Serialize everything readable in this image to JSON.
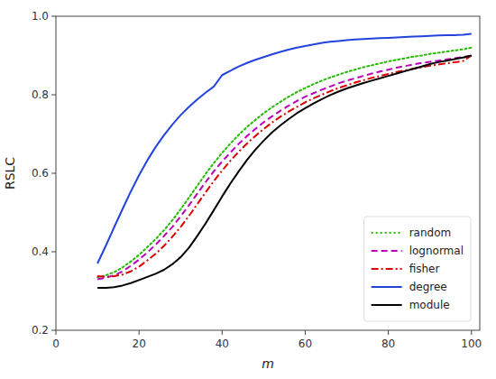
{
  "chart_data": {
    "type": "line",
    "xlabel": "m",
    "ylabel": "RSLC",
    "xlim": [
      0,
      102
    ],
    "ylim": [
      0.2,
      1.0
    ],
    "xticks": [
      0,
      20,
      40,
      60,
      80,
      100
    ],
    "yticks": [
      0.2,
      0.4,
      0.6,
      0.8,
      {
        "value": 1.0,
        "label": "1.0"
      }
    ],
    "grid": false,
    "legend": "lower right",
    "x": [
      10,
      12,
      14,
      16,
      18,
      20,
      22,
      24,
      26,
      28,
      30,
      32,
      34,
      36,
      38,
      40,
      42,
      44,
      46,
      48,
      50,
      52,
      54,
      56,
      58,
      60,
      62,
      64,
      66,
      68,
      70,
      72,
      74,
      76,
      78,
      80,
      82,
      84,
      86,
      88,
      90,
      92,
      94,
      96,
      98,
      100
    ],
    "series": [
      {
        "name": "random",
        "color": "#22bb00",
        "line_style": "dotted",
        "values": [
          0.335,
          0.34,
          0.348,
          0.36,
          0.375,
          0.392,
          0.412,
          0.432,
          0.455,
          0.48,
          0.508,
          0.538,
          0.568,
          0.598,
          0.626,
          0.652,
          0.676,
          0.698,
          0.718,
          0.736,
          0.753,
          0.768,
          0.782,
          0.795,
          0.807,
          0.817,
          0.827,
          0.836,
          0.844,
          0.851,
          0.858,
          0.864,
          0.87,
          0.875,
          0.88,
          0.885,
          0.889,
          0.893,
          0.897,
          0.9,
          0.904,
          0.907,
          0.91,
          0.913,
          0.916,
          0.92
        ]
      },
      {
        "name": "lognormal",
        "color": "#bb00bb",
        "line_style": "dashed",
        "values": [
          0.33,
          0.334,
          0.34,
          0.35,
          0.364,
          0.38,
          0.398,
          0.418,
          0.44,
          0.463,
          0.49,
          0.518,
          0.548,
          0.577,
          0.605,
          0.63,
          0.653,
          0.675,
          0.695,
          0.713,
          0.73,
          0.745,
          0.759,
          0.772,
          0.784,
          0.795,
          0.804,
          0.813,
          0.821,
          0.829,
          0.836,
          0.842,
          0.848,
          0.854,
          0.859,
          0.864,
          0.869,
          0.873,
          0.877,
          0.881,
          0.884,
          0.887,
          0.89,
          0.893,
          0.896,
          0.9
        ]
      },
      {
        "name": "fisher",
        "color": "#dd0000",
        "line_style": "dashdot",
        "values": [
          0.338,
          0.336,
          0.338,
          0.342,
          0.35,
          0.362,
          0.378,
          0.395,
          0.415,
          0.438,
          0.463,
          0.491,
          0.521,
          0.551,
          0.58,
          0.607,
          0.632,
          0.655,
          0.676,
          0.695,
          0.713,
          0.729,
          0.744,
          0.757,
          0.769,
          0.781,
          0.791,
          0.8,
          0.809,
          0.817,
          0.824,
          0.831,
          0.837,
          0.843,
          0.848,
          0.853,
          0.858,
          0.862,
          0.866,
          0.87,
          0.874,
          0.877,
          0.88,
          0.883,
          0.886,
          0.9
        ]
      },
      {
        "name": "degree",
        "color": "#2244dd",
        "line_style": "solid",
        "values": [
          0.37,
          0.415,
          0.462,
          0.508,
          0.553,
          0.595,
          0.633,
          0.667,
          0.697,
          0.724,
          0.748,
          0.769,
          0.788,
          0.805,
          0.821,
          0.85,
          0.861,
          0.872,
          0.881,
          0.889,
          0.896,
          0.903,
          0.909,
          0.915,
          0.92,
          0.924,
          0.928,
          0.932,
          0.935,
          0.937,
          0.939,
          0.941,
          0.942,
          0.943,
          0.944,
          0.945,
          0.946,
          0.947,
          0.948,
          0.949,
          0.95,
          0.951,
          0.952,
          0.952,
          0.953,
          0.955
        ]
      },
      {
        "name": "module",
        "color": "#000000",
        "line_style": "solid",
        "values": [
          0.308,
          0.308,
          0.31,
          0.314,
          0.32,
          0.328,
          0.336,
          0.344,
          0.354,
          0.368,
          0.386,
          0.41,
          0.44,
          0.472,
          0.506,
          0.541,
          0.574,
          0.605,
          0.634,
          0.66,
          0.683,
          0.704,
          0.722,
          0.738,
          0.753,
          0.766,
          0.778,
          0.789,
          0.799,
          0.808,
          0.816,
          0.823,
          0.83,
          0.836,
          0.842,
          0.848,
          0.854,
          0.86,
          0.866,
          0.872,
          0.878,
          0.883,
          0.887,
          0.891,
          0.895,
          0.9
        ]
      }
    ]
  }
}
